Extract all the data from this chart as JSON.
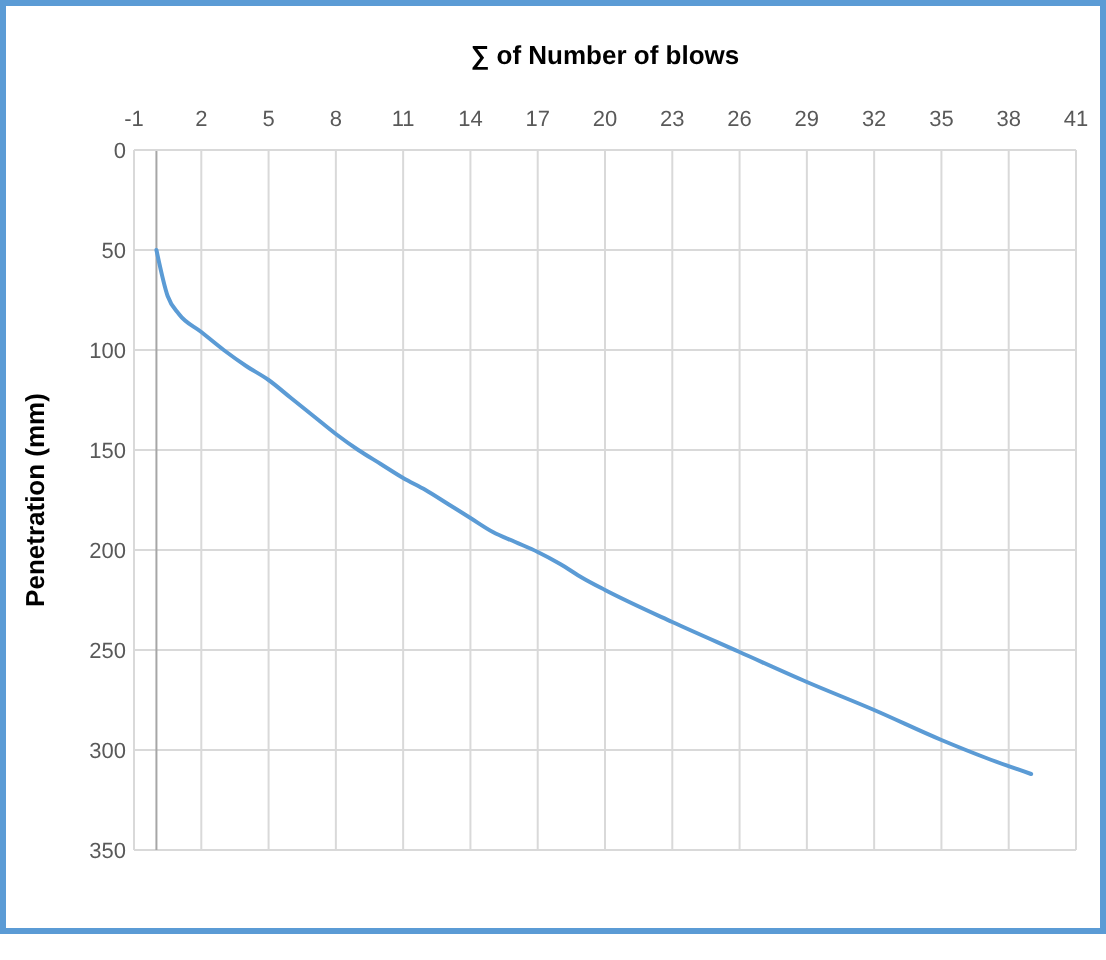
{
  "chart_data": {
    "type": "line",
    "xlabel": "∑ of Number of blows",
    "ylabel": "Penetration (mm)",
    "xlim": [
      -1,
      41
    ],
    "xticks": [
      -1,
      2,
      5,
      8,
      11,
      14,
      17,
      20,
      23,
      26,
      29,
      32,
      35,
      38,
      41
    ],
    "ylim": [
      350,
      0
    ],
    "yticks": [
      0,
      50,
      100,
      150,
      200,
      250,
      300,
      350
    ],
    "grid": true,
    "marker": "none",
    "line_style": "solid",
    "series": [
      {
        "color": "#5b9bd5",
        "x": [
          0,
          0.5,
          1,
          2,
          3,
          4,
          5,
          6,
          7,
          8,
          9,
          10,
          11,
          12,
          13,
          14,
          15,
          16,
          17,
          18,
          19,
          20,
          23,
          26,
          29,
          32,
          35,
          37,
          39
        ],
        "values": [
          50,
          73,
          82,
          91,
          100,
          108,
          115,
          124,
          133,
          142,
          150,
          157,
          164,
          170,
          177,
          184,
          191,
          196,
          201,
          207,
          214,
          220,
          236,
          251,
          266,
          280,
          295,
          304,
          312
        ]
      }
    ]
  }
}
